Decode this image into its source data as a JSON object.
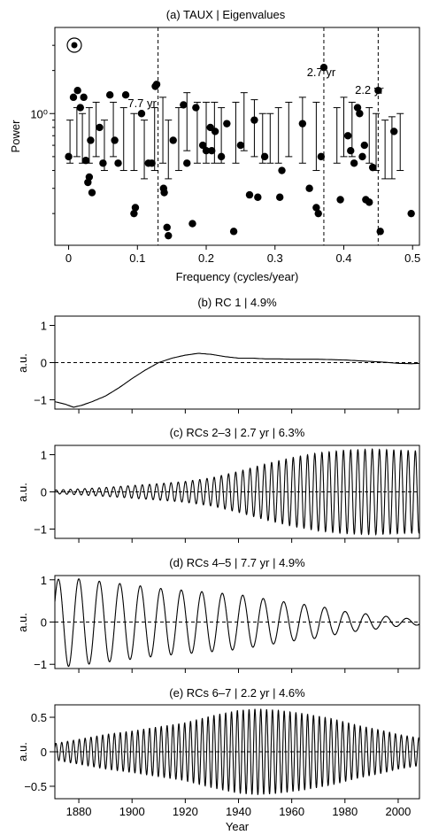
{
  "chart_data": [
    {
      "panel": "a",
      "type": "scatter",
      "title": "(a) TAUX | Eigenvalues",
      "xlabel": "Frequency (cycles/year)",
      "ylabel": "Power",
      "xlim": [
        -0.02,
        0.51
      ],
      "ylim": [
        0.12,
        4.0
      ],
      "yscale": "log",
      "xticks": [
        0,
        0.1,
        0.2,
        0.3,
        0.4,
        0.5
      ],
      "xtick_labels": [
        "0",
        "0.1",
        "0.2",
        "0.3",
        "0.4",
        "0.5"
      ],
      "yticks": [
        1.0
      ],
      "ytick_labels": [
        "10⁰"
      ],
      "marker_label": "⊙",
      "vlines": [
        {
          "x": 0.13,
          "label": "7.7 yr"
        },
        {
          "x": 0.371,
          "label": "2.7 yr"
        },
        {
          "x": 0.45,
          "label": "2.2 yr"
        }
      ],
      "eigenvalues": [
        {
          "x": 0.0,
          "y": 0.5
        },
        {
          "x": 0.007,
          "y": 1.3
        },
        {
          "x": 0.013,
          "y": 1.45
        },
        {
          "x": 0.017,
          "y": 1.1
        },
        {
          "x": 0.022,
          "y": 1.3
        },
        {
          "x": 0.025,
          "y": 0.47
        },
        {
          "x": 0.028,
          "y": 0.33
        },
        {
          "x": 0.03,
          "y": 0.36
        },
        {
          "x": 0.032,
          "y": 0.65
        },
        {
          "x": 0.034,
          "y": 0.28
        },
        {
          "x": 0.045,
          "y": 0.8
        },
        {
          "x": 0.05,
          "y": 0.45
        },
        {
          "x": 0.06,
          "y": 1.35
        },
        {
          "x": 0.067,
          "y": 0.65
        },
        {
          "x": 0.072,
          "y": 0.45
        },
        {
          "x": 0.083,
          "y": 1.35
        },
        {
          "x": 0.095,
          "y": 0.2
        },
        {
          "x": 0.097,
          "y": 0.22
        },
        {
          "x": 0.106,
          "y": 1.0
        },
        {
          "x": 0.116,
          "y": 0.45
        },
        {
          "x": 0.121,
          "y": 0.45
        },
        {
          "x": 0.126,
          "y": 1.55
        },
        {
          "x": 0.128,
          "y": 1.6
        },
        {
          "x": 0.138,
          "y": 0.3
        },
        {
          "x": 0.139,
          "y": 0.28
        },
        {
          "x": 0.143,
          "y": 0.16
        },
        {
          "x": 0.145,
          "y": 0.14
        },
        {
          "x": 0.152,
          "y": 0.65
        },
        {
          "x": 0.167,
          "y": 1.15
        },
        {
          "x": 0.172,
          "y": 0.45
        },
        {
          "x": 0.18,
          "y": 0.17
        },
        {
          "x": 0.185,
          "y": 1.1
        },
        {
          "x": 0.195,
          "y": 0.6
        },
        {
          "x": 0.2,
          "y": 0.55
        },
        {
          "x": 0.206,
          "y": 0.8
        },
        {
          "x": 0.208,
          "y": 0.55
        },
        {
          "x": 0.213,
          "y": 0.75
        },
        {
          "x": 0.222,
          "y": 0.5
        },
        {
          "x": 0.23,
          "y": 0.85
        },
        {
          "x": 0.24,
          "y": 0.15
        },
        {
          "x": 0.25,
          "y": 0.6
        },
        {
          "x": 0.263,
          "y": 0.27
        },
        {
          "x": 0.27,
          "y": 0.9
        },
        {
          "x": 0.275,
          "y": 0.26
        },
        {
          "x": 0.285,
          "y": 0.5
        },
        {
          "x": 0.307,
          "y": 0.26
        },
        {
          "x": 0.31,
          "y": 0.4
        },
        {
          "x": 0.34,
          "y": 0.85
        },
        {
          "x": 0.35,
          "y": 0.3
        },
        {
          "x": 0.36,
          "y": 0.22
        },
        {
          "x": 0.363,
          "y": 0.2
        },
        {
          "x": 0.367,
          "y": 0.5
        },
        {
          "x": 0.371,
          "y": 2.1
        },
        {
          "x": 0.395,
          "y": 0.25
        },
        {
          "x": 0.406,
          "y": 0.7
        },
        {
          "x": 0.41,
          "y": 0.55
        },
        {
          "x": 0.415,
          "y": 0.45
        },
        {
          "x": 0.42,
          "y": 1.1
        },
        {
          "x": 0.423,
          "y": 1.0
        },
        {
          "x": 0.427,
          "y": 0.5
        },
        {
          "x": 0.43,
          "y": 0.6
        },
        {
          "x": 0.432,
          "y": 0.25
        },
        {
          "x": 0.437,
          "y": 0.24
        },
        {
          "x": 0.442,
          "y": 0.42
        },
        {
          "x": 0.45,
          "y": 1.45
        },
        {
          "x": 0.453,
          "y": 0.15
        },
        {
          "x": 0.473,
          "y": 0.75
        },
        {
          "x": 0.498,
          "y": 0.2
        }
      ],
      "error_bars": [
        {
          "x": 0.002,
          "low": 0.45,
          "high": 0.9
        },
        {
          "x": 0.012,
          "low": 0.5,
          "high": 1.1
        },
        {
          "x": 0.02,
          "low": 0.45,
          "high": 1.0
        },
        {
          "x": 0.03,
          "low": 0.45,
          "high": 1.1
        },
        {
          "x": 0.04,
          "low": 0.5,
          "high": 1.2
        },
        {
          "x": 0.052,
          "low": 0.4,
          "high": 0.9
        },
        {
          "x": 0.065,
          "low": 0.5,
          "high": 1.2
        },
        {
          "x": 0.08,
          "low": 0.4,
          "high": 1.1
        },
        {
          "x": 0.095,
          "low": 0.4,
          "high": 1.0
        },
        {
          "x": 0.11,
          "low": 0.35,
          "high": 0.9
        },
        {
          "x": 0.125,
          "low": 0.4,
          "high": 1.1
        },
        {
          "x": 0.137,
          "low": 0.45,
          "high": 1.3
        },
        {
          "x": 0.145,
          "low": 0.35,
          "high": 0.9
        },
        {
          "x": 0.16,
          "low": 0.4,
          "high": 1.1
        },
        {
          "x": 0.172,
          "low": 0.55,
          "high": 1.4
        },
        {
          "x": 0.187,
          "low": 0.45,
          "high": 1.2
        },
        {
          "x": 0.2,
          "low": 0.45,
          "high": 1.2
        },
        {
          "x": 0.212,
          "low": 0.45,
          "high": 1.2
        },
        {
          "x": 0.222,
          "low": 0.45,
          "high": 1.1
        },
        {
          "x": 0.243,
          "low": 0.45,
          "high": 1.2
        },
        {
          "x": 0.255,
          "low": 0.55,
          "high": 1.4
        },
        {
          "x": 0.27,
          "low": 0.5,
          "high": 1.25
        },
        {
          "x": 0.282,
          "low": 0.45,
          "high": 1.0
        },
        {
          "x": 0.293,
          "low": 0.45,
          "high": 1.0
        },
        {
          "x": 0.305,
          "low": 0.45,
          "high": 1.1
        },
        {
          "x": 0.32,
          "low": 0.5,
          "high": 1.2
        },
        {
          "x": 0.34,
          "low": 0.45,
          "high": 1.3
        },
        {
          "x": 0.36,
          "low": 0.4,
          "high": 1.2
        },
        {
          "x": 0.39,
          "low": 0.45,
          "high": 1.1
        },
        {
          "x": 0.4,
          "low": 0.5,
          "high": 1.3
        },
        {
          "x": 0.412,
          "low": 0.5,
          "high": 1.2
        },
        {
          "x": 0.437,
          "low": 0.45,
          "high": 1.1
        },
        {
          "x": 0.447,
          "low": 0.4,
          "high": 1.0
        },
        {
          "x": 0.46,
          "low": 0.35,
          "high": 0.9
        },
        {
          "x": 0.47,
          "low": 0.35,
          "high": 0.95
        },
        {
          "x": 0.482,
          "low": 0.4,
          "high": 1.0
        }
      ]
    },
    {
      "panel": "b",
      "type": "line",
      "title": "(b) RC 1 | 4.9%",
      "ylabel": "a.u.",
      "xlim": [
        1871,
        2008
      ],
      "ylim": [
        -1.25,
        1.25
      ],
      "yticks": [
        -1,
        0,
        1
      ],
      "ytick_labels": [
        "−1",
        "0",
        "1"
      ],
      "zero_line": true,
      "series": [
        {
          "x": [
            1871,
            1875,
            1878,
            1881,
            1885,
            1890,
            1895,
            1900,
            1905,
            1910,
            1915,
            1920,
            1925,
            1930,
            1935,
            1940,
            1945,
            1950,
            1955,
            1960,
            1965,
            1970,
            1975,
            1980,
            1985,
            1990,
            1995,
            2000,
            2005,
            2008
          ],
          "y": [
            -1.05,
            -1.12,
            -1.2,
            -1.15,
            -1.05,
            -0.9,
            -0.68,
            -0.43,
            -0.2,
            0.0,
            0.12,
            0.2,
            0.25,
            0.22,
            0.16,
            0.12,
            0.12,
            0.1,
            0.1,
            0.09,
            0.09,
            0.09,
            0.08,
            0.07,
            0.05,
            0.03,
            0.01,
            -0.02,
            -0.03,
            -0.02
          ]
        }
      ]
    },
    {
      "panel": "c",
      "type": "line",
      "title": "(c) RCs 2–3 | 2.7 yr | 6.3%",
      "ylabel": "a.u.",
      "xlim": [
        1871,
        2008
      ],
      "ylim": [
        -1.25,
        1.25
      ],
      "yticks": [
        -1,
        0,
        1
      ],
      "ytick_labels": [
        "−1",
        "0",
        "1"
      ],
      "zero_line": true,
      "period_years": 2.7,
      "envelope": {
        "years": [
          1871,
          1880,
          1890,
          1900,
          1910,
          1920,
          1930,
          1940,
          1950,
          1960,
          1970,
          1980,
          1990,
          2000,
          2008
        ],
        "amplitude": [
          0.05,
          0.08,
          0.12,
          0.17,
          0.22,
          0.28,
          0.38,
          0.55,
          0.75,
          0.92,
          1.05,
          1.12,
          1.15,
          1.12,
          1.1
        ]
      }
    },
    {
      "panel": "d",
      "type": "line",
      "title": "(d) RCs 4–5 | 7.7 yr | 4.9%",
      "ylabel": "a.u.",
      "xlim": [
        1871,
        2008
      ],
      "ylim": [
        -1.1,
        1.1
      ],
      "yticks": [
        -1,
        0,
        1
      ],
      "ytick_labels": [
        "−1",
        "0",
        "1"
      ],
      "zero_line": true,
      "period_years": 7.7,
      "envelope": {
        "years": [
          1871,
          1876,
          1890,
          1900,
          1910,
          1920,
          1930,
          1940,
          1950,
          1960,
          1970,
          1980,
          1990,
          2000,
          2008
        ],
        "amplitude": [
          1.0,
          1.05,
          0.95,
          0.88,
          0.8,
          0.75,
          0.7,
          0.65,
          0.55,
          0.45,
          0.38,
          0.25,
          0.18,
          0.1,
          0.07
        ]
      }
    },
    {
      "panel": "e",
      "type": "line",
      "title": "(e) RCs 6–7 | 2.2 yr | 4.6%",
      "ylabel": "a.u.",
      "xlabel": "Year",
      "xlim": [
        1871,
        2008
      ],
      "ylim": [
        -0.68,
        0.68
      ],
      "xticks": [
        1880,
        1900,
        1920,
        1940,
        1960,
        1980,
        2000
      ],
      "xtick_labels": [
        "1880",
        "1900",
        "1920",
        "1940",
        "1960",
        "1980",
        "2000"
      ],
      "yticks": [
        -0.5,
        0,
        0.5
      ],
      "ytick_labels": [
        "−0.5",
        "0",
        "0.5"
      ],
      "zero_line": true,
      "period_years": 2.2,
      "envelope": {
        "years": [
          1871,
          1880,
          1890,
          1900,
          1910,
          1920,
          1930,
          1940,
          1947,
          1955,
          1965,
          1975,
          1985,
          1995,
          2000,
          2008
        ],
        "amplitude": [
          0.12,
          0.18,
          0.25,
          0.3,
          0.36,
          0.42,
          0.52,
          0.6,
          0.62,
          0.6,
          0.55,
          0.48,
          0.38,
          0.3,
          0.25,
          0.2
        ]
      }
    }
  ]
}
